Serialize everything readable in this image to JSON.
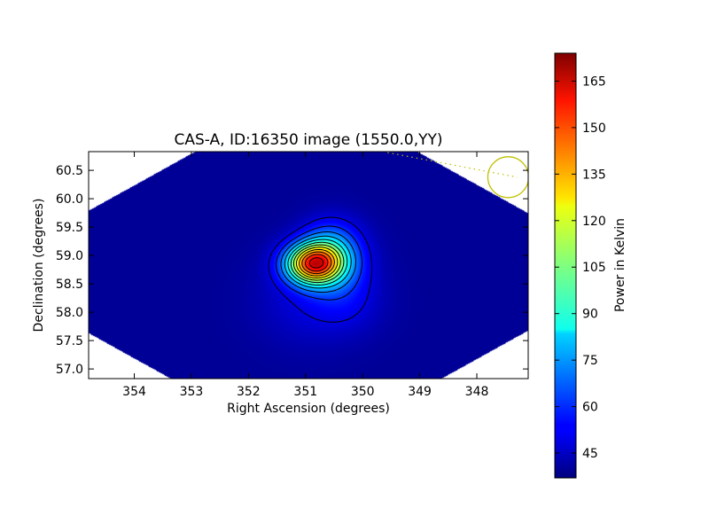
{
  "chart_data": {
    "type": "heatmap",
    "title": "CAS-A, ID:16350 image (1550.0,YY)",
    "xlabel": "Right Ascension (degrees)",
    "ylabel": "Declination (degrees)",
    "xlim": [
      354.8,
      347.1
    ],
    "ylim": [
      56.83,
      60.83
    ],
    "x_ticks": [
      "354",
      "353",
      "352",
      "351",
      "350",
      "349",
      "348"
    ],
    "x_tick_values": [
      354,
      353,
      352,
      351,
      350,
      349,
      348
    ],
    "y_ticks": [
      "57.0",
      "57.5",
      "58.0",
      "58.5",
      "59.0",
      "59.5",
      "60.0",
      "60.5"
    ],
    "y_tick_values": [
      57.0,
      57.5,
      58.0,
      58.5,
      59.0,
      59.5,
      60.0,
      60.5
    ],
    "colorbar": {
      "label": "Power in Kelvin",
      "min": 37,
      "max": 174,
      "ticks": [
        "45",
        "60",
        "75",
        "90",
        "105",
        "120",
        "135",
        "150",
        "165"
      ],
      "tick_values": [
        45,
        60,
        75,
        90,
        105,
        120,
        135,
        150,
        165
      ],
      "colormap": "jet"
    },
    "source": {
      "peak_ra": 350.85,
      "peak_dec": 58.85,
      "peak_value": 174,
      "background_value": 40
    },
    "beam_circle": {
      "ra": 347.45,
      "dec": 60.38,
      "color": "#bfbf00"
    },
    "grid": false
  }
}
